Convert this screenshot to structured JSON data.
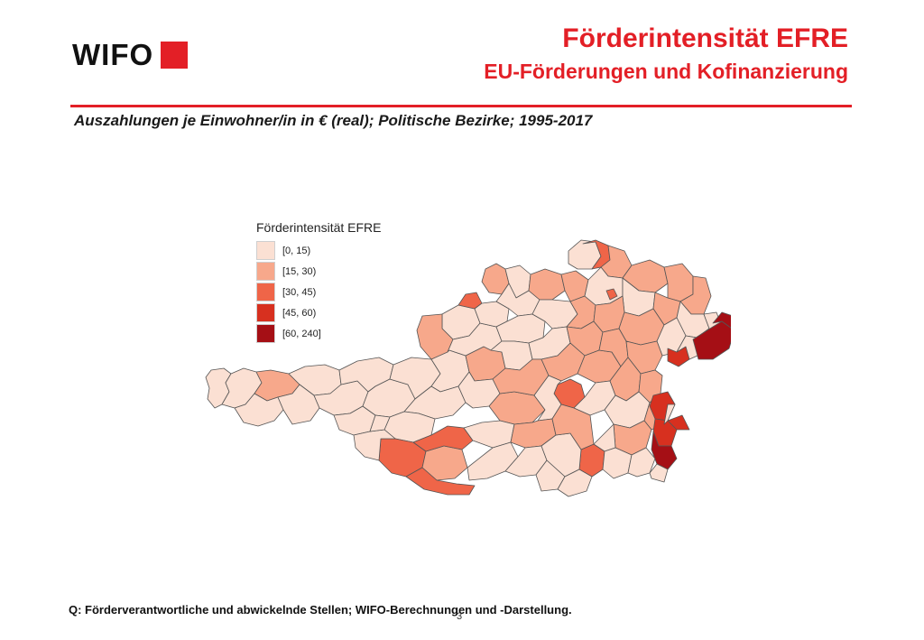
{
  "header": {
    "logo_text": "WIFO",
    "title": "Förderintensität EFRE",
    "subtitle": "EU-Förderungen und Kofinanzierung",
    "accent_color": "#e31f26"
  },
  "map": {
    "caption": "Auszahlungen je Einwohner/in in € (real); Politische Bezirke; 1995-2017",
    "legend": {
      "title": "Förderintensität EFRE",
      "items": [
        {
          "label": "[0, 15)",
          "color": "#fbe0d3"
        },
        {
          "label": "[15, 30)",
          "color": "#f7a88b"
        },
        {
          "label": "[30, 45)",
          "color": "#ef6548"
        },
        {
          "label": "[45, 60)",
          "color": "#d7301f"
        },
        {
          "label": "[60, 240]",
          "color": "#a50f15"
        }
      ]
    }
  },
  "footer": {
    "source": "Q: Förderverantwortliche und abwickelnde Stellen; WIFO-Berechnungen und -Darstellung.",
    "page_number": "3"
  }
}
